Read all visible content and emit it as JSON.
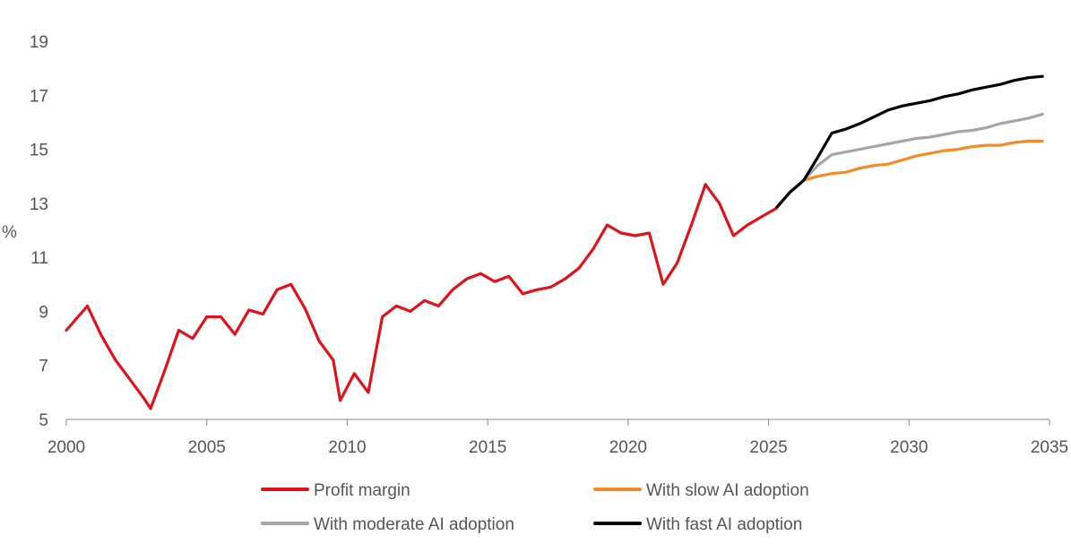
{
  "chart_data": {
    "type": "line",
    "title": "",
    "xlabel": "",
    "ylabel": "%",
    "xlim": [
      2000,
      2035
    ],
    "ylim": [
      5,
      19
    ],
    "x_ticks": [
      "2000",
      "2005",
      "2010",
      "2015",
      "2020",
      "2025",
      "2030",
      "2035"
    ],
    "y_ticks": [
      "5",
      "7",
      "9",
      "11",
      "13",
      "15",
      "17",
      "19"
    ],
    "grid": false,
    "legend_position": "bottom",
    "series": [
      {
        "name": "Profit margin",
        "color": "#e0121b",
        "points": [
          [
            2000.0,
            8.3
          ],
          [
            2000.75,
            9.2
          ],
          [
            2001.25,
            8.1
          ],
          [
            2001.75,
            7.2
          ],
          [
            2002.25,
            6.5
          ],
          [
            2002.75,
            5.8
          ],
          [
            2003.0,
            5.4
          ],
          [
            2003.5,
            6.8
          ],
          [
            2004.0,
            8.3
          ],
          [
            2004.5,
            8.0
          ],
          [
            2005.0,
            8.8
          ],
          [
            2005.5,
            8.8
          ],
          [
            2006.0,
            8.15
          ],
          [
            2006.5,
            9.05
          ],
          [
            2007.0,
            8.9
          ],
          [
            2007.5,
            9.8
          ],
          [
            2008.0,
            10.0
          ],
          [
            2008.5,
            9.1
          ],
          [
            2009.0,
            7.9
          ],
          [
            2009.5,
            7.2
          ],
          [
            2009.75,
            5.7
          ],
          [
            2010.25,
            6.7
          ],
          [
            2010.75,
            6.0
          ],
          [
            2011.25,
            8.8
          ],
          [
            2011.75,
            9.2
          ],
          [
            2012.25,
            9.0
          ],
          [
            2012.75,
            9.4
          ],
          [
            2013.25,
            9.2
          ],
          [
            2013.75,
            9.8
          ],
          [
            2014.25,
            10.2
          ],
          [
            2014.75,
            10.4
          ],
          [
            2015.25,
            10.1
          ],
          [
            2015.75,
            10.3
          ],
          [
            2016.25,
            9.65
          ],
          [
            2016.75,
            9.8
          ],
          [
            2017.25,
            9.9
          ],
          [
            2017.75,
            10.2
          ],
          [
            2018.25,
            10.6
          ],
          [
            2018.75,
            11.3
          ],
          [
            2019.25,
            12.2
          ],
          [
            2019.75,
            11.9
          ],
          [
            2020.25,
            11.8
          ],
          [
            2020.75,
            11.9
          ],
          [
            2021.25,
            10.0
          ],
          [
            2021.75,
            10.8
          ],
          [
            2022.25,
            12.2
          ],
          [
            2022.75,
            13.7
          ],
          [
            2023.25,
            13.0
          ],
          [
            2023.75,
            11.8
          ],
          [
            2024.25,
            12.2
          ],
          [
            2024.75,
            12.5
          ],
          [
            2025.25,
            12.8
          ]
        ]
      },
      {
        "name": "With slow AI adoption",
        "color": "#f28c28",
        "points": [
          [
            2025.25,
            12.8
          ],
          [
            2025.75,
            13.4
          ],
          [
            2026.25,
            13.85
          ],
          [
            2026.75,
            14.0
          ],
          [
            2027.25,
            14.1
          ],
          [
            2027.75,
            14.15
          ],
          [
            2028.25,
            14.3
          ],
          [
            2028.75,
            14.4
          ],
          [
            2029.25,
            14.45
          ],
          [
            2029.75,
            14.6
          ],
          [
            2030.25,
            14.75
          ],
          [
            2030.75,
            14.85
          ],
          [
            2031.25,
            14.95
          ],
          [
            2031.75,
            15.0
          ],
          [
            2032.25,
            15.1
          ],
          [
            2032.75,
            15.15
          ],
          [
            2033.25,
            15.15
          ],
          [
            2033.75,
            15.25
          ],
          [
            2034.25,
            15.3
          ],
          [
            2034.75,
            15.3
          ]
        ]
      },
      {
        "name": "With moderate AI adoption",
        "color": "#a6a6a6",
        "points": [
          [
            2025.25,
            12.8
          ],
          [
            2025.75,
            13.4
          ],
          [
            2026.25,
            13.85
          ],
          [
            2026.75,
            14.4
          ],
          [
            2027.25,
            14.8
          ],
          [
            2027.75,
            14.9
          ],
          [
            2028.25,
            15.0
          ],
          [
            2028.75,
            15.1
          ],
          [
            2029.25,
            15.2
          ],
          [
            2029.75,
            15.3
          ],
          [
            2030.25,
            15.4
          ],
          [
            2030.75,
            15.45
          ],
          [
            2031.25,
            15.55
          ],
          [
            2031.75,
            15.65
          ],
          [
            2032.25,
            15.7
          ],
          [
            2032.75,
            15.8
          ],
          [
            2033.25,
            15.95
          ],
          [
            2033.75,
            16.05
          ],
          [
            2034.25,
            16.15
          ],
          [
            2034.75,
            16.3
          ]
        ]
      },
      {
        "name": "With fast AI adoption",
        "color": "#000000",
        "points": [
          [
            2025.25,
            12.8
          ],
          [
            2025.75,
            13.4
          ],
          [
            2026.25,
            13.85
          ],
          [
            2026.75,
            14.7
          ],
          [
            2027.25,
            15.6
          ],
          [
            2027.75,
            15.75
          ],
          [
            2028.25,
            15.95
          ],
          [
            2028.75,
            16.2
          ],
          [
            2029.25,
            16.45
          ],
          [
            2029.75,
            16.6
          ],
          [
            2030.25,
            16.7
          ],
          [
            2030.75,
            16.8
          ],
          [
            2031.25,
            16.95
          ],
          [
            2031.75,
            17.05
          ],
          [
            2032.25,
            17.2
          ],
          [
            2032.75,
            17.3
          ],
          [
            2033.25,
            17.4
          ],
          [
            2033.75,
            17.55
          ],
          [
            2034.25,
            17.65
          ],
          [
            2034.75,
            17.7
          ]
        ]
      }
    ]
  }
}
